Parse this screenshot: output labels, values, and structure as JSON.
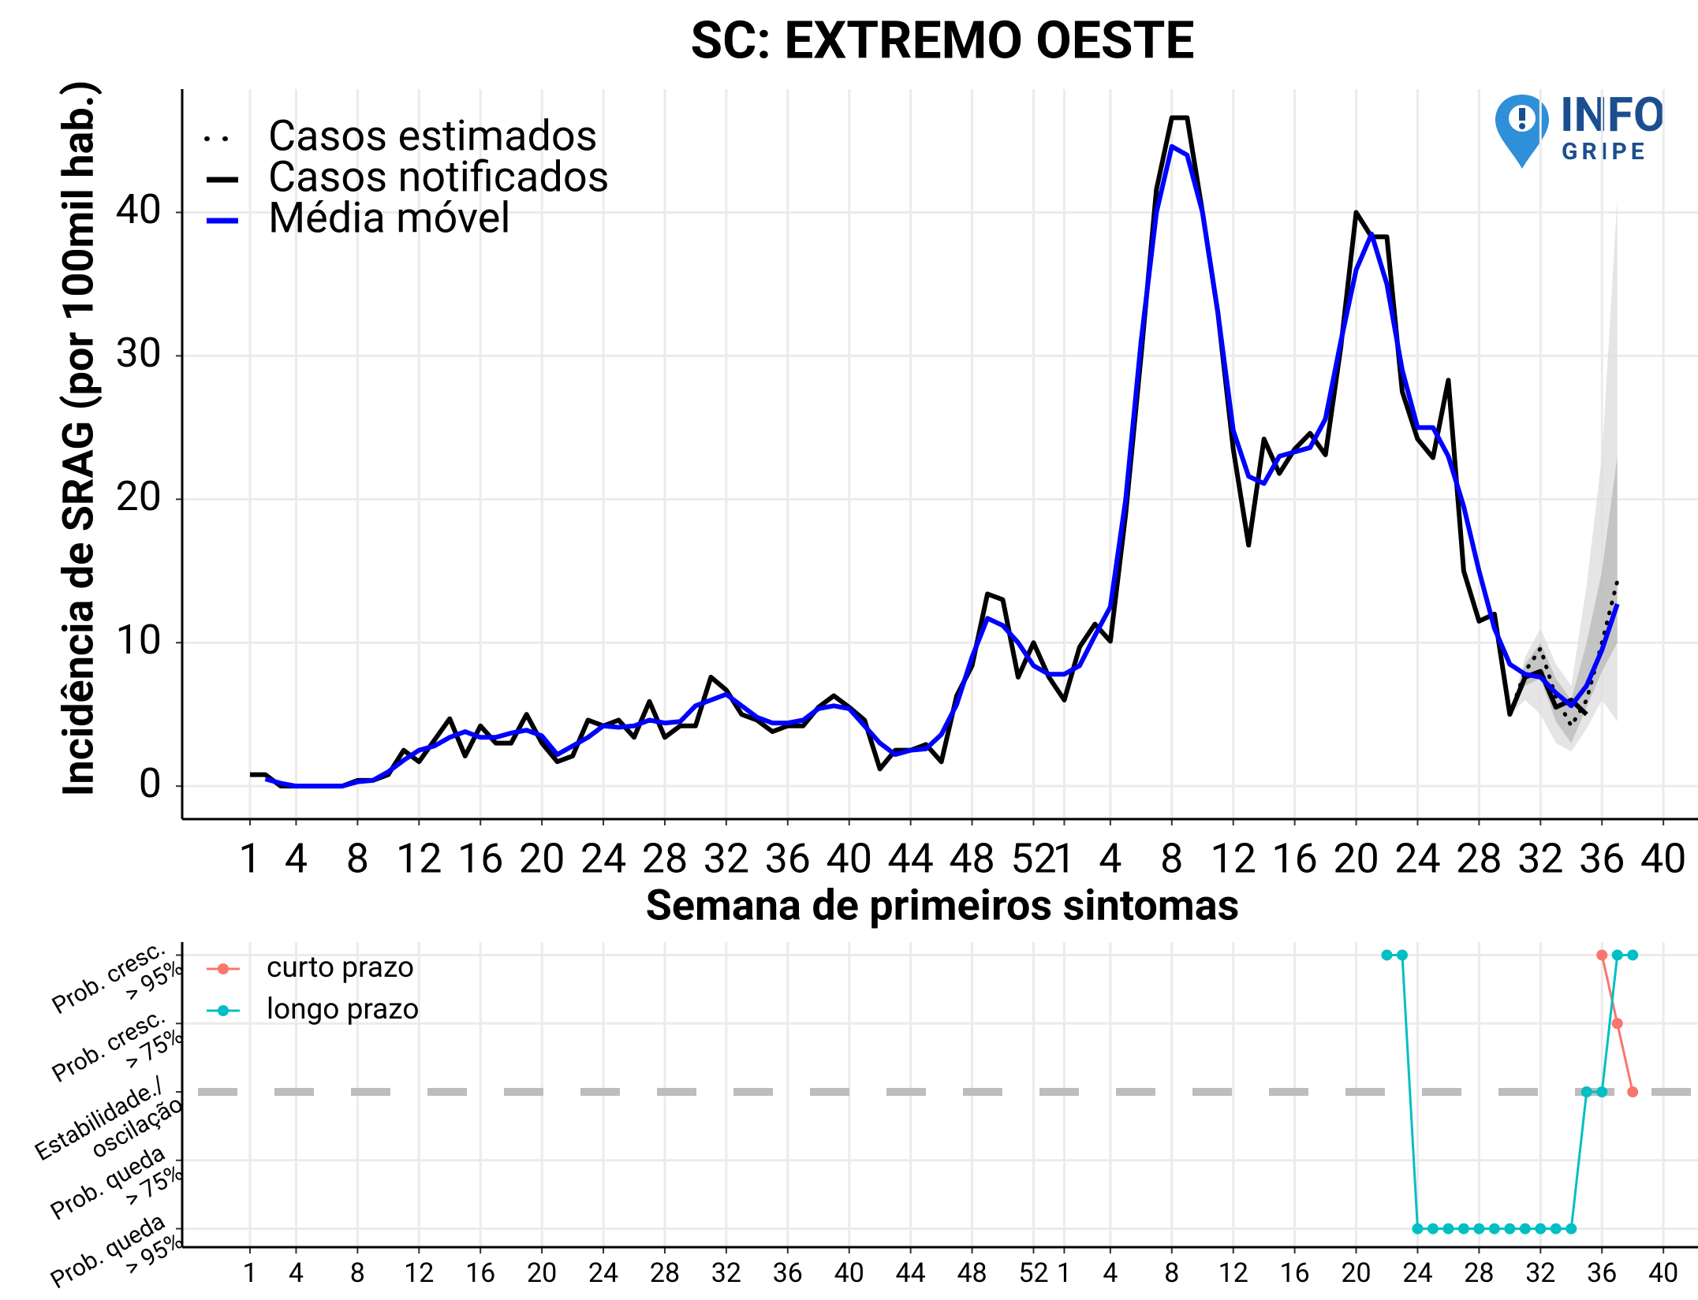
{
  "chart_data": [
    {
      "type": "line",
      "title": "SC: EXTREMO OESTE",
      "x_label": "Semana de primeiros sintomas",
      "y_label": "Incidência de SRAG (por 100mil hab.)",
      "logo": [
        "INFO",
        "GRIPE"
      ],
      "categories": [
        "1",
        null,
        null,
        "4",
        null,
        null,
        null,
        "8",
        null,
        null,
        null,
        "12",
        null,
        null,
        null,
        "16",
        null,
        null,
        null,
        "20",
        null,
        null,
        null,
        "24",
        null,
        null,
        null,
        "28",
        null,
        null,
        null,
        "32",
        null,
        null,
        null,
        "36",
        null,
        null,
        null,
        "40",
        null,
        null,
        null,
        "44",
        null,
        null,
        null,
        "48",
        null,
        null,
        null,
        "52",
        null,
        "1",
        null,
        null,
        "4",
        null,
        null,
        null,
        "8",
        null,
        null,
        null,
        "12",
        null,
        null,
        null,
        "16",
        null,
        null,
        null,
        "20",
        null,
        null,
        null,
        "24",
        null,
        null,
        null,
        "28",
        null,
        null,
        null,
        "32",
        null,
        null,
        null,
        "36",
        null,
        null,
        null,
        "40"
      ],
      "ylim": [
        -2.3,
        48.6
      ],
      "yticks": [
        0,
        10,
        20,
        30,
        40
      ],
      "grid": true,
      "legend": "top-left",
      "series": [
        {
          "name": "Casos estimados",
          "color": "#000000",
          "style": "dotted",
          "values": [
            null,
            null,
            null,
            null,
            null,
            null,
            null,
            null,
            null,
            null,
            null,
            null,
            null,
            null,
            null,
            null,
            null,
            null,
            null,
            null,
            null,
            null,
            null,
            null,
            null,
            null,
            null,
            null,
            null,
            null,
            null,
            null,
            null,
            null,
            null,
            null,
            null,
            null,
            null,
            null,
            null,
            null,
            null,
            null,
            null,
            null,
            null,
            null,
            null,
            null,
            null,
            null,
            null,
            null,
            null,
            null,
            null,
            null,
            null,
            null,
            null,
            null,
            null,
            null,
            null,
            null,
            null,
            null,
            null,
            null,
            null,
            null,
            null,
            null,
            null,
            null,
            null,
            null,
            null,
            null,
            null,
            null,
            5,
            8,
            9.6,
            6.2,
            4.2,
            6,
            10,
            14.3,
            null,
            null,
            null
          ]
        },
        {
          "name": "Casos notificados",
          "color": "#000000",
          "style": "solid",
          "values": [
            0.8,
            0.8,
            0,
            0,
            0,
            0,
            0,
            0.4,
            0.4,
            0.8,
            2.5,
            1.7,
            3.2,
            4.7,
            2.1,
            4.2,
            3,
            3,
            5,
            3,
            1.7,
            2.1,
            4.6,
            4.2,
            4.6,
            3.4,
            5.9,
            3.4,
            4.2,
            4.2,
            7.6,
            6.7,
            5,
            4.6,
            3.8,
            4.2,
            4.2,
            5.5,
            6.3,
            5.5,
            4.6,
            1.2,
            2.5,
            2.5,
            2.9,
            1.7,
            6.3,
            8.4,
            13.4,
            13,
            7.6,
            10,
            7.6,
            6,
            9.7,
            11.3,
            10.1,
            19,
            30,
            41.6,
            46.6,
            46.6,
            40,
            33,
            23.5,
            16.8,
            24.2,
            21.8,
            23.5,
            24.6,
            23.1,
            30.6,
            40,
            38.3,
            38.3,
            27.5,
            24.2,
            22.9,
            28.3,
            15,
            11.5,
            12,
            5,
            7.6,
            8,
            5.5,
            6,
            5,
            null,
            null,
            null,
            null,
            null
          ]
        },
        {
          "name": "Média móvel",
          "color": "#0000ff",
          "style": "solid",
          "values": [
            null,
            0.5,
            0.2,
            0,
            0,
            0,
            0,
            0.3,
            0.4,
            1,
            1.8,
            2.5,
            2.8,
            3.4,
            3.8,
            3.4,
            3.4,
            3.7,
            3.9,
            3.5,
            2.2,
            2.8,
            3.4,
            4.2,
            4.1,
            4.2,
            4.6,
            4.4,
            4.5,
            5.6,
            6,
            6.4,
            5.6,
            4.8,
            4.4,
            4.4,
            4.6,
            5.4,
            5.6,
            5.4,
            4.2,
            3,
            2.2,
            2.5,
            2.6,
            3.6,
            5.7,
            9,
            11.7,
            11.2,
            10,
            8.4,
            7.8,
            7.8,
            8.4,
            10.5,
            12.5,
            20,
            31,
            40,
            44.6,
            44,
            40,
            33,
            24.8,
            21.6,
            21.1,
            23,
            23.3,
            23.6,
            25.6,
            31,
            36,
            38.5,
            35,
            29,
            25,
            25,
            23,
            19.5,
            15,
            11,
            8.5,
            7.8,
            7.6,
            6.5,
            5.6,
            7,
            9.5,
            12.7,
            null,
            null,
            null
          ]
        }
      ],
      "bands": [
        {
          "color": "#dcdcdc",
          "lower": [
            null,
            null,
            null,
            null,
            null,
            null,
            null,
            null,
            null,
            null,
            null,
            null,
            null,
            null,
            null,
            null,
            null,
            null,
            null,
            null,
            null,
            null,
            null,
            null,
            null,
            null,
            null,
            null,
            null,
            null,
            null,
            null,
            null,
            null,
            null,
            null,
            null,
            null,
            null,
            null,
            null,
            null,
            null,
            null,
            null,
            null,
            null,
            null,
            null,
            null,
            null,
            null,
            null,
            null,
            null,
            null,
            null,
            null,
            null,
            null,
            null,
            null,
            null,
            null,
            null,
            null,
            null,
            null,
            null,
            null,
            null,
            null,
            null,
            null,
            null,
            null,
            null,
            null,
            null,
            null,
            null,
            null,
            5,
            6,
            5,
            3,
            2.4,
            4,
            6,
            4.5,
            null,
            null,
            null
          ],
          "upper": [
            null,
            null,
            null,
            null,
            null,
            null,
            null,
            null,
            null,
            null,
            null,
            null,
            null,
            null,
            null,
            null,
            null,
            null,
            null,
            null,
            null,
            null,
            null,
            null,
            null,
            null,
            null,
            null,
            null,
            null,
            null,
            null,
            null,
            null,
            null,
            null,
            null,
            null,
            null,
            null,
            null,
            null,
            null,
            null,
            null,
            null,
            null,
            null,
            null,
            null,
            null,
            null,
            null,
            null,
            null,
            null,
            null,
            null,
            null,
            null,
            null,
            null,
            null,
            null,
            null,
            null,
            null,
            null,
            null,
            null,
            null,
            null,
            null,
            null,
            null,
            null,
            null,
            null,
            null,
            null,
            null,
            null,
            5,
            9,
            11,
            8.5,
            7,
            14,
            23,
            41,
            null,
            null,
            null
          ]
        },
        {
          "color": "#b8b8b8",
          "lower": [
            null,
            null,
            null,
            null,
            null,
            null,
            null,
            null,
            null,
            null,
            null,
            null,
            null,
            null,
            null,
            null,
            null,
            null,
            null,
            null,
            null,
            null,
            null,
            null,
            null,
            null,
            null,
            null,
            null,
            null,
            null,
            null,
            null,
            null,
            null,
            null,
            null,
            null,
            null,
            null,
            null,
            null,
            null,
            null,
            null,
            null,
            null,
            null,
            null,
            null,
            null,
            null,
            null,
            null,
            null,
            null,
            null,
            null,
            null,
            null,
            null,
            null,
            null,
            null,
            null,
            null,
            null,
            null,
            null,
            null,
            null,
            null,
            null,
            null,
            null,
            null,
            null,
            null,
            null,
            null,
            null,
            null,
            5,
            7,
            7.5,
            4.5,
            3,
            5.5,
            8,
            10,
            null,
            null,
            null
          ],
          "upper": [
            null,
            null,
            null,
            null,
            null,
            null,
            null,
            null,
            null,
            null,
            null,
            null,
            null,
            null,
            null,
            null,
            null,
            null,
            null,
            null,
            null,
            null,
            null,
            null,
            null,
            null,
            null,
            null,
            null,
            null,
            null,
            null,
            null,
            null,
            null,
            null,
            null,
            null,
            null,
            null,
            null,
            null,
            null,
            null,
            null,
            null,
            null,
            null,
            null,
            null,
            null,
            null,
            null,
            null,
            null,
            null,
            null,
            null,
            null,
            null,
            null,
            null,
            null,
            null,
            null,
            null,
            null,
            null,
            null,
            null,
            null,
            null,
            null,
            null,
            null,
            null,
            null,
            null,
            null,
            null,
            null,
            null,
            5,
            8.5,
            10,
            7.5,
            6,
            10,
            15,
            23,
            null,
            null,
            null
          ]
        }
      ]
    },
    {
      "type": "line",
      "markers": true,
      "categories": [
        "1",
        null,
        null,
        "4",
        null,
        null,
        null,
        "8",
        null,
        null,
        null,
        "12",
        null,
        null,
        null,
        "16",
        null,
        null,
        null,
        "20",
        null,
        null,
        null,
        "24",
        null,
        null,
        null,
        "28",
        null,
        null,
        null,
        "32",
        null,
        null,
        null,
        "36",
        null,
        null,
        null,
        "40",
        null,
        null,
        null,
        "44",
        null,
        null,
        null,
        "48",
        null,
        null,
        null,
        "52",
        null,
        "1",
        null,
        null,
        "4",
        null,
        null,
        null,
        "8",
        null,
        null,
        null,
        "12",
        null,
        null,
        null,
        "16",
        null,
        null,
        null,
        "20",
        null,
        null,
        null,
        "24",
        null,
        null,
        null,
        "28",
        null,
        null,
        null,
        "32",
        null,
        null,
        null,
        "36",
        null,
        null,
        null,
        "40"
      ],
      "ylim": [
        -2.27,
        2.19
      ],
      "yticks": [
        {
          "value": -2,
          "label": "Prob. queda > 95%"
        },
        {
          "value": -1,
          "label": "Prob. queda > 75%"
        },
        {
          "value": 0,
          "label": "Estabilidade./ oscilação"
        },
        {
          "value": 1,
          "label": "Prob. cresc. > 75%"
        },
        {
          "value": 2,
          "label": "Prob. cresc. > 95%"
        }
      ],
      "grid": true,
      "reference_line": 0,
      "legend": "top-left",
      "series": [
        {
          "name": "curto prazo",
          "color": "#F8766D",
          "values": [
            null,
            null,
            null,
            null,
            null,
            null,
            null,
            null,
            null,
            null,
            null,
            null,
            null,
            null,
            null,
            null,
            null,
            null,
            null,
            null,
            null,
            null,
            null,
            null,
            null,
            null,
            null,
            null,
            null,
            null,
            null,
            null,
            null,
            null,
            null,
            null,
            null,
            null,
            null,
            null,
            null,
            null,
            null,
            null,
            null,
            null,
            null,
            null,
            null,
            null,
            null,
            null,
            null,
            null,
            null,
            null,
            null,
            null,
            null,
            null,
            null,
            null,
            null,
            null,
            null,
            null,
            null,
            null,
            null,
            null,
            null,
            null,
            null,
            null,
            null,
            null,
            null,
            null,
            null,
            null,
            null,
            null,
            null,
            null,
            null,
            null,
            null,
            null,
            2,
            1,
            0,
            null,
            null
          ]
        },
        {
          "name": "longo prazo",
          "color": "#00BFC4",
          "values": [
            null,
            null,
            null,
            null,
            null,
            null,
            null,
            null,
            null,
            null,
            null,
            null,
            null,
            null,
            null,
            null,
            null,
            null,
            null,
            null,
            null,
            null,
            null,
            null,
            null,
            null,
            null,
            null,
            null,
            null,
            null,
            null,
            null,
            null,
            null,
            null,
            null,
            null,
            null,
            null,
            null,
            null,
            null,
            null,
            null,
            null,
            null,
            null,
            null,
            null,
            null,
            null,
            null,
            null,
            null,
            null,
            null,
            null,
            null,
            null,
            null,
            null,
            null,
            null,
            null,
            null,
            null,
            null,
            null,
            null,
            null,
            null,
            null,
            null,
            2,
            2,
            -2,
            -2,
            -2,
            -2,
            -2,
            -2,
            -2,
            -2,
            -2,
            -2,
            -2,
            0,
            0,
            2,
            2,
            null,
            null
          ]
        }
      ]
    }
  ]
}
